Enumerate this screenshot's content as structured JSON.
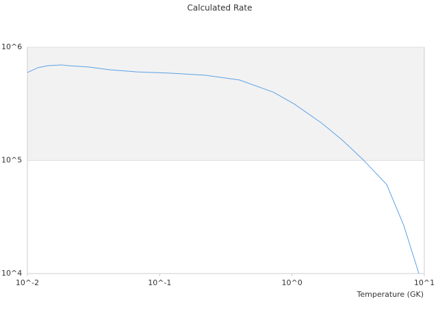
{
  "chart_data": {
    "type": "line",
    "title": "Calculated Rate",
    "x_label": "Temperature (GK)",
    "log_x": true,
    "log_y": true,
    "grid_band_color": "#f2f2f2",
    "xlim": [
      0.01,
      10
    ],
    "ylim": [
      10000,
      1000000
    ],
    "xticks": [
      {
        "value": 0.01,
        "label": "10^-2"
      },
      {
        "value": 0.1,
        "label": "10^-1"
      },
      {
        "value": 1,
        "label": "10^0"
      },
      {
        "value": 10,
        "label": "10^1"
      }
    ],
    "yticks": [
      {
        "value": 10000,
        "label": "10^4"
      },
      {
        "value": 100000,
        "label": "10^5"
      },
      {
        "value": 1000000,
        "label": "10^6"
      }
    ],
    "x": [
      0.01,
      0.012,
      0.0143,
      0.0181,
      0.0204,
      0.0292,
      0.0418,
      0.0673,
      0.122,
      0.221,
      0.402,
      0.728,
      1.04,
      1.68,
      2.4,
      3.43,
      5.2,
      7.0,
      9.1
    ],
    "series": [
      {
        "color": "#5aa0e6",
        "values": [
          597000,
          659000,
          687000,
          697000,
          687000,
          668000,
          632000,
          605000,
          589000,
          565000,
          513000,
          399000,
          315000,
          213000,
          151000,
          102000,
          61100,
          26500,
          10000
        ]
      }
    ]
  }
}
